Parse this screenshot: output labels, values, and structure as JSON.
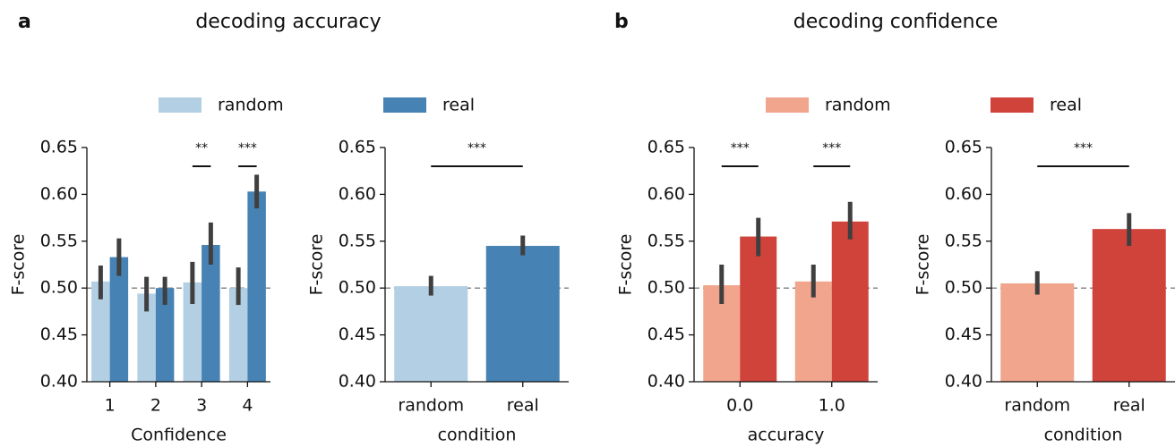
{
  "panels": [
    {
      "label": "a",
      "title": "decoding accuracy"
    },
    {
      "label": "b",
      "title": "decoding confidence"
    }
  ],
  "chart_data": [
    {
      "type": "bar",
      "xlabel": "Confidence",
      "ylabel": "F-score",
      "categories": [
        "1",
        "2",
        "3",
        "4"
      ],
      "series": [
        {
          "name": "random",
          "color": "#b3cfe3",
          "values": [
            0.507,
            0.494,
            0.506,
            0.5
          ],
          "ci": [
            [
              0.488,
              0.524
            ],
            [
              0.475,
              0.512
            ],
            [
              0.483,
              0.528
            ],
            [
              0.482,
              0.522
            ]
          ]
        },
        {
          "name": "real",
          "color": "#4682b4",
          "values": [
            0.533,
            0.5,
            0.546,
            0.603
          ],
          "ci": [
            [
              0.513,
              0.553
            ],
            [
              0.482,
              0.512
            ],
            [
              0.525,
              0.57
            ],
            [
              0.585,
              0.621
            ]
          ]
        }
      ],
      "annotations": [
        {
          "text": "**",
          "category": "3"
        },
        {
          "text": "***",
          "category": "4"
        }
      ],
      "reference_line": 0.5,
      "ylim": [
        0.4,
        0.65
      ],
      "yticks": [
        {
          "value": 0.4,
          "label": "0.40"
        },
        {
          "value": 0.45,
          "label": "0.45"
        },
        {
          "value": 0.5,
          "label": "0.50"
        },
        {
          "value": 0.55,
          "label": "0.55"
        },
        {
          "value": 0.6,
          "label": "0.60"
        },
        {
          "value": 0.65,
          "label": "0.65"
        }
      ]
    },
    {
      "type": "bar",
      "xlabel": "condition",
      "ylabel": "F-score",
      "categories": [
        "random",
        "real"
      ],
      "values": [
        0.502,
        0.545
      ],
      "colors": [
        "#b3cfe3",
        "#4682b4"
      ],
      "ci": [
        [
          0.492,
          0.513
        ],
        [
          0.535,
          0.556
        ]
      ],
      "annotations": [
        {
          "text": "***"
        }
      ],
      "reference_line": 0.5,
      "ylim": [
        0.4,
        0.65
      ],
      "yticks": [
        {
          "value": 0.4,
          "label": "0.40"
        },
        {
          "value": 0.45,
          "label": "0.45"
        },
        {
          "value": 0.5,
          "label": "0.50"
        },
        {
          "value": 0.55,
          "label": "0.55"
        },
        {
          "value": 0.6,
          "label": "0.60"
        },
        {
          "value": 0.65,
          "label": "0.65"
        }
      ]
    },
    {
      "type": "bar",
      "xlabel": "accuracy",
      "ylabel": "F-score",
      "categories": [
        "0.0",
        "1.0"
      ],
      "series": [
        {
          "name": "random",
          "color": "#f0a58c",
          "values": [
            0.503,
            0.507
          ],
          "ci": [
            [
              0.483,
              0.525
            ],
            [
              0.49,
              0.525
            ]
          ]
        },
        {
          "name": "real",
          "color": "#d0433b",
          "values": [
            0.555,
            0.571
          ],
          "ci": [
            [
              0.534,
              0.575
            ],
            [
              0.552,
              0.592
            ]
          ]
        }
      ],
      "annotations": [
        {
          "text": "***",
          "category": "0.0"
        },
        {
          "text": "***",
          "category": "1.0"
        }
      ],
      "reference_line": 0.5,
      "ylim": [
        0.4,
        0.65
      ],
      "yticks": [
        {
          "value": 0.4,
          "label": "0.40"
        },
        {
          "value": 0.45,
          "label": "0.45"
        },
        {
          "value": 0.5,
          "label": "0.50"
        },
        {
          "value": 0.55,
          "label": "0.55"
        },
        {
          "value": 0.6,
          "label": "0.60"
        },
        {
          "value": 0.65,
          "label": "0.65"
        }
      ]
    },
    {
      "type": "bar",
      "xlabel": "condition",
      "ylabel": "F-score",
      "categories": [
        "random",
        "real"
      ],
      "values": [
        0.505,
        0.563
      ],
      "colors": [
        "#f0a58c",
        "#d0433b"
      ],
      "ci": [
        [
          0.493,
          0.518
        ],
        [
          0.545,
          0.58
        ]
      ],
      "annotations": [
        {
          "text": "***"
        }
      ],
      "reference_line": 0.5,
      "ylim": [
        0.4,
        0.65
      ],
      "yticks": [
        {
          "value": 0.4,
          "label": "0.40"
        },
        {
          "value": 0.45,
          "label": "0.45"
        },
        {
          "value": 0.5,
          "label": "0.50"
        },
        {
          "value": 0.55,
          "label": "0.55"
        },
        {
          "value": 0.6,
          "label": "0.60"
        },
        {
          "value": 0.65,
          "label": "0.65"
        }
      ]
    }
  ]
}
